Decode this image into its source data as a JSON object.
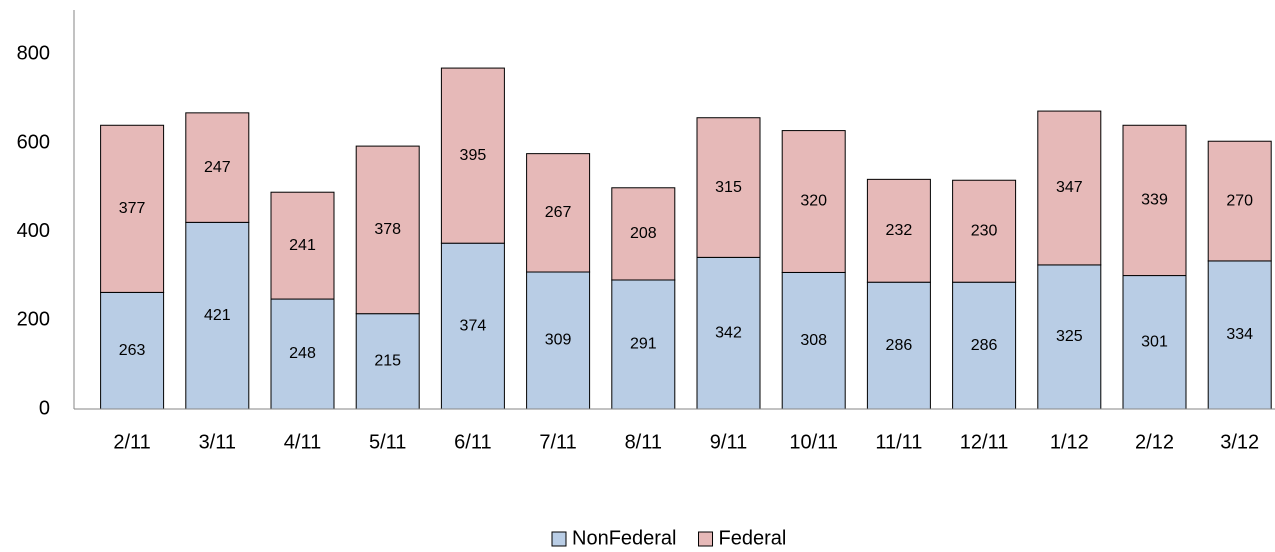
{
  "chart_data": {
    "type": "stacked_bar",
    "categories": [
      "2/11",
      "3/11",
      "4/11",
      "5/11",
      "6/11",
      "7/11",
      "8/11",
      "9/11",
      "10/11",
      "11/11",
      "12/11",
      "1/12",
      "2/12",
      "3/12"
    ],
    "series": [
      {
        "name": "NonFederal",
        "color": "#b9cde5",
        "values": [
          263,
          421,
          248,
          215,
          374,
          309,
          291,
          342,
          308,
          286,
          286,
          325,
          301,
          334
        ]
      },
      {
        "name": "Federal",
        "color": "#e6b9b8",
        "values": [
          377,
          247,
          241,
          378,
          395,
          267,
          208,
          315,
          320,
          232,
          230,
          347,
          339,
          270
        ]
      }
    ],
    "ylim": [
      0,
      900
    ],
    "yticks": [
      0,
      200,
      400,
      600,
      800
    ],
    "grid": false,
    "legend": "bottom"
  }
}
